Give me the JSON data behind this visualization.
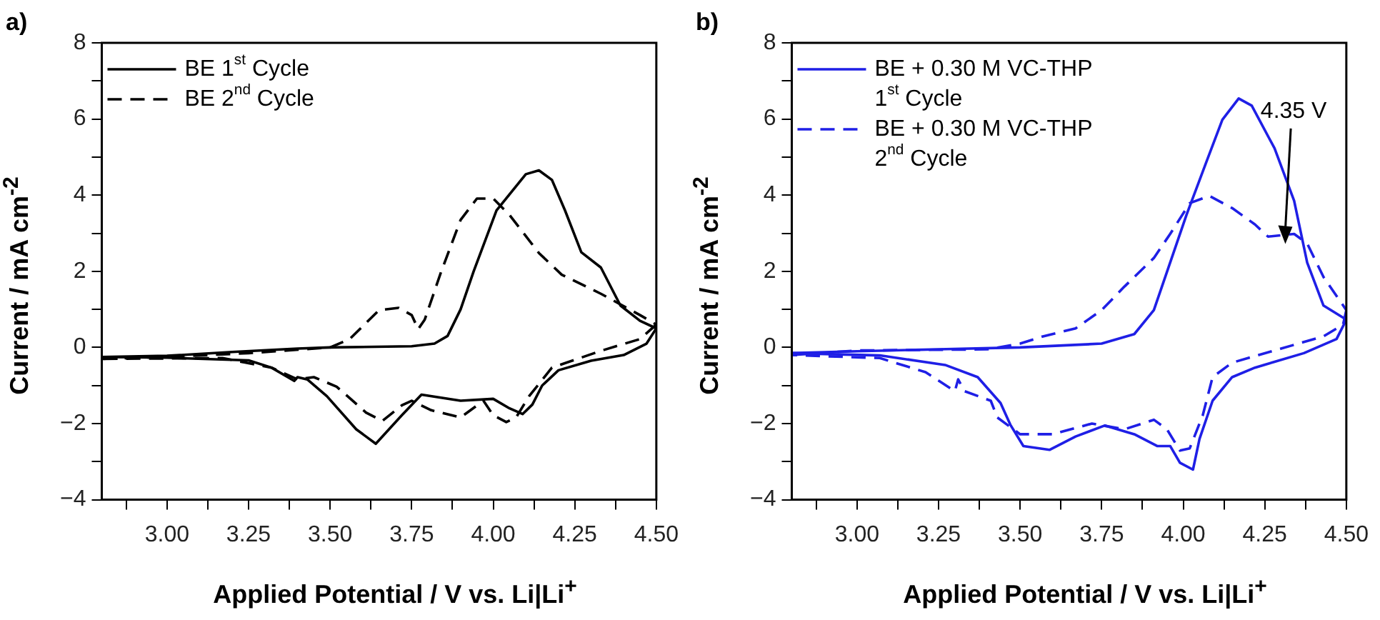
{
  "chart_data": [
    {
      "type": "line",
      "title": "a)",
      "xlabel": "Applied Potential / V vs. Li|Li$^{+}$",
      "ylabel": "Current / mA cm$^{-2}$",
      "legend": "top left",
      "marker": "none",
      "xlim": [
        2.8,
        4.5
      ],
      "xticks": [
        {
          "value": 2.875,
          "label": null
        },
        {
          "value": 3,
          "label": "3.00"
        },
        {
          "value": 3.125,
          "label": null
        },
        {
          "value": 3.25,
          "label": "3.25"
        },
        {
          "value": 3.375,
          "label": null
        },
        {
          "value": 3.5,
          "label": "3.50"
        },
        {
          "value": 3.625,
          "label": null
        },
        {
          "value": 3.75,
          "label": "3.75"
        },
        {
          "value": 3.875,
          "label": null
        },
        {
          "value": 4,
          "label": "4.00"
        },
        {
          "value": 4.125,
          "label": null
        },
        {
          "value": 4.25,
          "label": "4.25"
        },
        {
          "value": 4.375,
          "label": null
        },
        {
          "value": 4.5,
          "label": "4.50"
        }
      ],
      "ylim": [
        -4,
        8
      ],
      "yticks": [
        -4,
        {
          "value": -3,
          "label": null
        },
        -2,
        {
          "value": -1,
          "label": null
        },
        0,
        {
          "value": 1,
          "label": null
        },
        2,
        {
          "value": 3,
          "label": null
        },
        4,
        {
          "value": 5,
          "label": null
        },
        6,
        {
          "value": 7,
          "label": null
        },
        8
      ],
      "series": [
        {
          "name": "BE 1$^{st}$ Cycle",
          "color": "#000000",
          "line_style": "solid",
          "x": [
            2.8,
            3.0,
            3.2,
            3.4,
            3.5,
            3.75,
            3.82,
            3.86,
            3.9,
            3.94,
            4.01,
            4.1,
            4.14,
            4.18,
            4.22,
            4.27,
            4.33,
            4.39,
            4.45,
            4.5
          ],
          "values": [
            -0.25,
            -0.22,
            -0.12,
            -0.03,
            0,
            0.03,
            0.1,
            0.3,
            1.0,
            2.0,
            3.6,
            4.55,
            4.65,
            4.4,
            3.6,
            2.5,
            2.1,
            1.1,
            0.7,
            0.5
          ]
        },
        {
          "color": "#000000",
          "line_style": "solid",
          "x": [
            4.5,
            4.47,
            4.4,
            4.3,
            4.2,
            4.15,
            4.12,
            4.09,
            4.05,
            4.0,
            3.9,
            3.78,
            3.72,
            3.64,
            3.58,
            3.49,
            3.43,
            3.4,
            3.39,
            3.32,
            3.25,
            3.0,
            2.8
          ],
          "values": [
            0.5,
            0.1,
            -0.2,
            -0.35,
            -0.6,
            -1.0,
            -1.5,
            -1.75,
            -1.6,
            -1.35,
            -1.4,
            -1.24,
            -1.78,
            -2.53,
            -2.15,
            -1.28,
            -0.84,
            -0.78,
            -0.88,
            -0.53,
            -0.34,
            -0.27,
            -0.25
          ]
        },
        {
          "name": "BE 2$^{nd}$ Cycle",
          "color": "#000000",
          "line_style": "dashed",
          "x": [
            2.8,
            3.0,
            3.25,
            3.5,
            3.56,
            3.65,
            3.71,
            3.75,
            3.77,
            3.79,
            3.84,
            3.9,
            3.95,
            4.0,
            4.05,
            4.14,
            4.21,
            4.33,
            4.45,
            4.5
          ],
          "values": [
            -0.3,
            -0.25,
            -0.15,
            0,
            0.22,
            0.98,
            1.04,
            0.85,
            0.48,
            0.73,
            1.98,
            3.35,
            3.91,
            3.91,
            3.48,
            2.48,
            1.91,
            1.41,
            0.85,
            0.6
          ]
        },
        {
          "color": "#000000",
          "line_style": "dashed",
          "x": [
            4.5,
            4.45,
            4.33,
            4.18,
            4.11,
            4.07,
            4.04,
            4.0,
            3.97,
            3.9,
            3.81,
            3.75,
            3.72,
            3.66,
            3.61,
            3.52,
            3.45,
            3.4,
            3.32,
            3.17,
            2.8
          ],
          "values": [
            0.6,
            0.22,
            -0.09,
            -0.53,
            -1.28,
            -1.84,
            -1.96,
            -1.78,
            -1.4,
            -1.84,
            -1.65,
            -1.4,
            -1.52,
            -1.93,
            -1.71,
            -1.03,
            -0.78,
            -0.84,
            -0.53,
            -0.28,
            -0.3
          ]
        }
      ]
    },
    {
      "type": "line",
      "title": "b)",
      "xlabel": "Applied Potential / V vs. Li|Li$^{+}$",
      "ylabel": "Current / mA cm$^{-2}$",
      "legend": "top left",
      "marker": "none",
      "xlim": [
        2.8,
        4.5
      ],
      "xticks": [
        {
          "value": 2.875,
          "label": null
        },
        {
          "value": 3,
          "label": "3.00"
        },
        {
          "value": 3.125,
          "label": null
        },
        {
          "value": 3.25,
          "label": "3.25"
        },
        {
          "value": 3.375,
          "label": null
        },
        {
          "value": 3.5,
          "label": "3.50"
        },
        {
          "value": 3.625,
          "label": null
        },
        {
          "value": 3.75,
          "label": "3.75"
        },
        {
          "value": 3.875,
          "label": null
        },
        {
          "value": 4,
          "label": "4.00"
        },
        {
          "value": 4.125,
          "label": null
        },
        {
          "value": 4.25,
          "label": "4.25"
        },
        {
          "value": 4.375,
          "label": null
        },
        {
          "value": 4.5,
          "label": "4.50"
        }
      ],
      "ylim": [
        -4,
        8
      ],
      "yticks": [
        -4,
        {
          "value": -3,
          "label": null
        },
        -2,
        {
          "value": -1,
          "label": null
        },
        0,
        {
          "value": 1,
          "label": null
        },
        2,
        {
          "value": 3,
          "label": null
        },
        4,
        {
          "value": 5,
          "label": null
        },
        6,
        {
          "value": 7,
          "label": null
        },
        8
      ],
      "annotations": [
        "4.35 V"
      ],
      "series": [
        {
          "name": "BE + 0.30 M VC-THP 1$^{st}$ Cycle",
          "color": "#1f1fe6",
          "line_style": "solid",
          "x": [
            2.8,
            3.0,
            3.25,
            3.5,
            3.75,
            3.85,
            3.91,
            3.95,
            4.01,
            4.07,
            4.12,
            4.17,
            4.21,
            4.28,
            4.34,
            4.38,
            4.43,
            4.5
          ],
          "values": [
            -0.15,
            -0.1,
            -0.05,
            0,
            0.1,
            0.35,
            0.98,
            1.98,
            3.48,
            4.85,
            5.98,
            6.54,
            6.35,
            5.23,
            3.85,
            2.23,
            1.1,
            0.73
          ]
        },
        {
          "color": "#1f1fe6",
          "line_style": "solid",
          "x": [
            4.5,
            4.47,
            4.37,
            4.22,
            4.15,
            4.09,
            4.05,
            4.03,
            3.99,
            3.96,
            3.92,
            3.85,
            3.76,
            3.67,
            3.59,
            3.51,
            3.47,
            3.44,
            3.37,
            3.27,
            3.07,
            2.8
          ],
          "values": [
            0.73,
            0.22,
            -0.15,
            -0.53,
            -0.78,
            -1.4,
            -2.4,
            -3.21,
            -3.03,
            -2.59,
            -2.59,
            -2.28,
            -2.05,
            -2.34,
            -2.69,
            -2.59,
            -2.03,
            -1.46,
            -0.78,
            -0.46,
            -0.21,
            -0.15
          ]
        },
        {
          "name": "BE + 0.30 M VC-THP 2$^{nd}$ Cycle",
          "color": "#1f1fe6",
          "line_style": "dashed",
          "x": [
            2.8,
            3.0,
            3.4,
            3.5,
            3.57,
            3.67,
            3.75,
            3.82,
            3.91,
            3.96,
            4.02,
            4.08,
            4.15,
            4.22,
            4.26,
            4.34,
            4.38,
            4.43,
            4.5
          ],
          "values": [
            -0.2,
            -0.08,
            -0.05,
            0.1,
            0.29,
            0.5,
            0.98,
            1.6,
            2.35,
            2.98,
            3.79,
            3.98,
            3.66,
            3.23,
            2.91,
            2.98,
            2.73,
            1.85,
            0.98
          ]
        },
        {
          "color": "#1f1fe6",
          "line_style": "dashed",
          "x": [
            4.5,
            4.49,
            4.43,
            4.3,
            4.15,
            4.09,
            4.06,
            4.02,
            3.99,
            3.95,
            3.91,
            3.82,
            3.72,
            3.6,
            3.5,
            3.43,
            3.41,
            3.33,
            3.31,
            3.3,
            3.21,
            3.07,
            2.8
          ],
          "values": [
            0.98,
            0.6,
            0.29,
            -0.03,
            -0.4,
            -0.78,
            -1.78,
            -2.65,
            -2.71,
            -2.15,
            -1.9,
            -2.15,
            -2.0,
            -2.28,
            -2.28,
            -1.84,
            -1.4,
            -1.15,
            -0.84,
            -1.15,
            -0.65,
            -0.28,
            -0.2
          ]
        }
      ]
    }
  ]
}
